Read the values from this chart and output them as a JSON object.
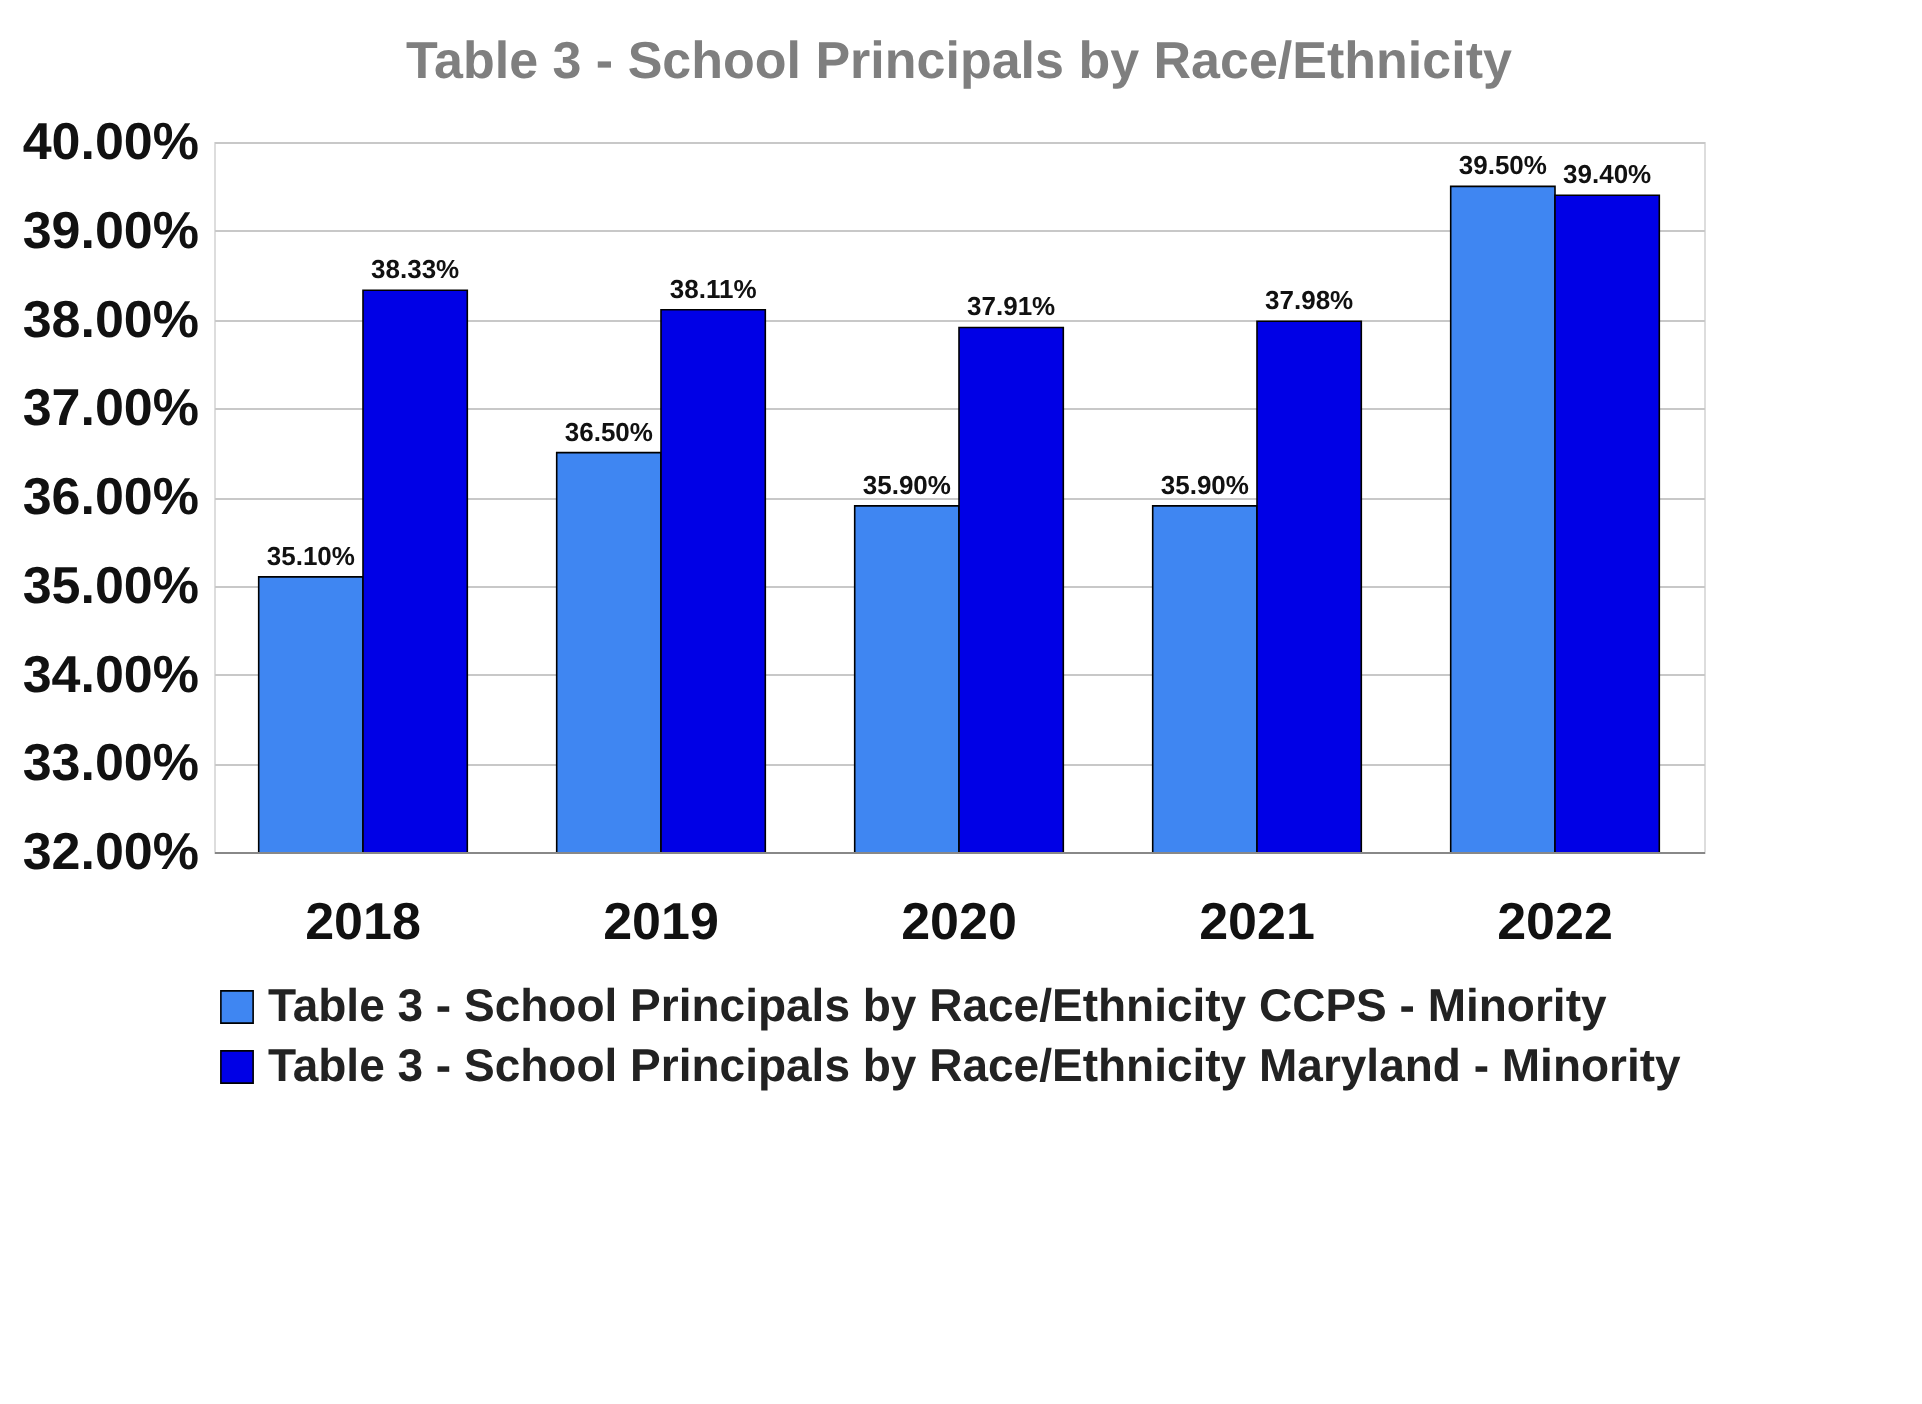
{
  "chart_data": {
    "type": "bar",
    "title": "Table 3 - School Principals by Race/Ethnicity",
    "categories": [
      "2018",
      "2019",
      "2020",
      "2021",
      "2022"
    ],
    "series": [
      {
        "name": "Table 3 - School Principals by Race/Ethnicity CCPS - Minority",
        "color": "#3f86f2",
        "values": [
          35.1,
          36.5,
          35.9,
          35.9,
          39.5
        ],
        "value_labels": [
          "35.10%",
          "36.50%",
          "35.90%",
          "35.90%",
          "39.50%"
        ]
      },
      {
        "name": "Table 3 - School Principals by Race/Ethnicity Maryland - Minority",
        "color": "#0000e6",
        "values": [
          38.33,
          38.11,
          37.91,
          37.98,
          39.4
        ],
        "value_labels": [
          "38.33%",
          "38.11%",
          "37.91%",
          "37.98%",
          "39.40%"
        ]
      }
    ],
    "ylim": [
      32,
      40
    ],
    "yticks": [
      {
        "value": 32,
        "label": "32.00%"
      },
      {
        "value": 33,
        "label": "33.00%"
      },
      {
        "value": 34,
        "label": "34.00%"
      },
      {
        "value": 35,
        "label": "35.00%"
      },
      {
        "value": 36,
        "label": "36.00%"
      },
      {
        "value": 37,
        "label": "37.00%"
      },
      {
        "value": 38,
        "label": "38.00%"
      },
      {
        "value": 39,
        "label": "39.00%"
      },
      {
        "value": 40,
        "label": "40.00%"
      }
    ],
    "grid": "y",
    "legend": "bottom"
  }
}
